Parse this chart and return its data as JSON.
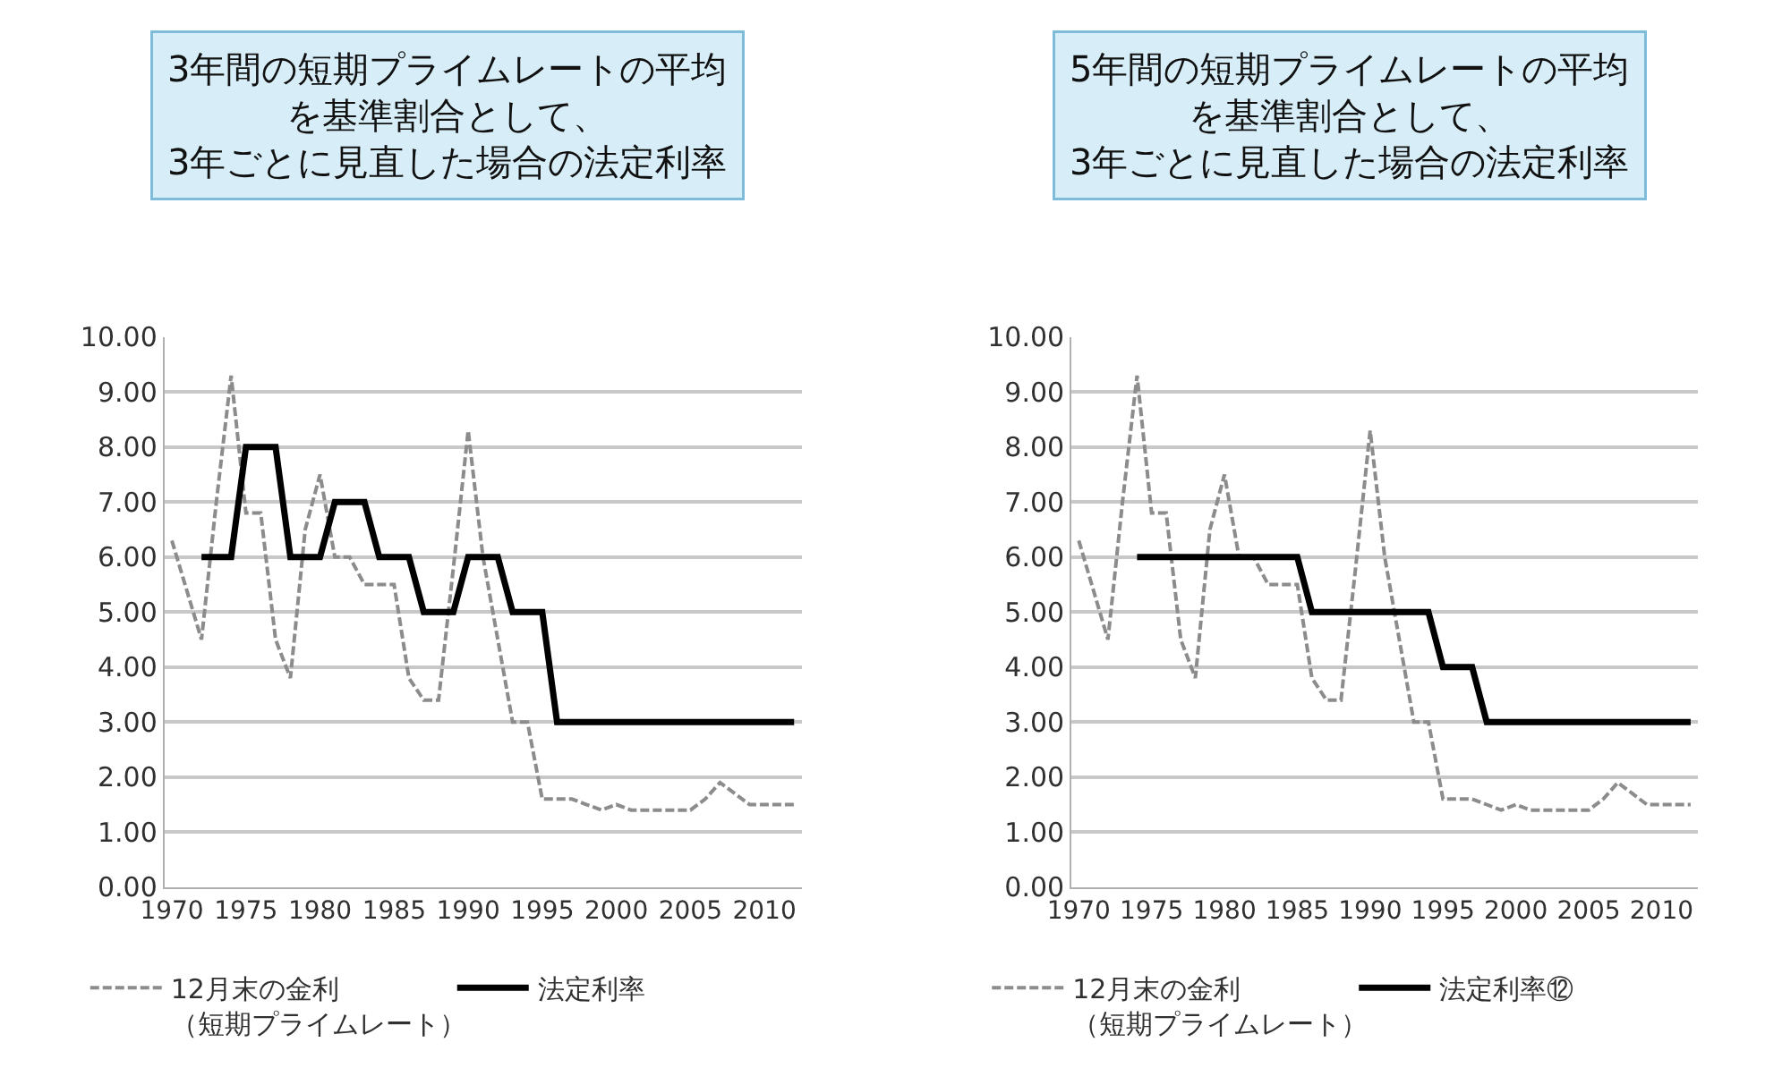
{
  "chart_data": [
    {
      "type": "line",
      "title": "3年間の短期プライムレートの平均を基準割合として、3年ごとに見直した場合の法定利率",
      "x": [
        1970,
        1971,
        1972,
        1973,
        1974,
        1975,
        1976,
        1977,
        1978,
        1979,
        1980,
        1981,
        1982,
        1983,
        1984,
        1985,
        1986,
        1987,
        1988,
        1989,
        1990,
        1991,
        1992,
        1993,
        1994,
        1995,
        1996,
        1997,
        1998,
        1999,
        2000,
        2001,
        2002,
        2003,
        2004,
        2005,
        2006,
        2007,
        2008,
        2009,
        2010,
        2011,
        2012
      ],
      "xlim": [
        1969.5,
        2012.5
      ],
      "xticks": [
        1970,
        1975,
        1980,
        1985,
        1990,
        1995,
        2000,
        2005,
        2010
      ],
      "ylim": [
        0,
        10
      ],
      "yticks": [
        {
          "value": 0,
          "label": "0.00"
        },
        {
          "value": 1,
          "label": "1.00"
        },
        {
          "value": 2,
          "label": "2.00"
        },
        {
          "value": 3,
          "label": "3.00"
        },
        {
          "value": 4,
          "label": "4.00"
        },
        {
          "value": 5,
          "label": "5.00"
        },
        {
          "value": 6,
          "label": "6.00"
        },
        {
          "value": 7,
          "label": "7.00"
        },
        {
          "value": 8,
          "label": "8.00"
        },
        {
          "value": 9,
          "label": "9.00"
        },
        {
          "value": 10,
          "label": "10.00"
        }
      ],
      "grid": "y",
      "legend": "bottom",
      "marker": "none",
      "series": [
        {
          "name": "12月末の金利（短期プライムレート）",
          "color": "#8c8c8c",
          "line_style": "dashed",
          "values": [
            6.3,
            5.4,
            4.5,
            7.0,
            9.3,
            6.8,
            6.8,
            4.5,
            3.8,
            6.5,
            7.5,
            6.0,
            6.0,
            5.5,
            5.5,
            5.5,
            3.8,
            3.4,
            3.4,
            5.8,
            8.3,
            6.0,
            4.5,
            3.0,
            3.0,
            1.6,
            1.6,
            1.6,
            1.5,
            1.4,
            1.5,
            1.4,
            1.4,
            1.4,
            1.4,
            1.4,
            1.6,
            1.9,
            1.7,
            1.5,
            1.5,
            1.5,
            1.5
          ]
        },
        {
          "name": "法定利率",
          "color": "#000000",
          "line_style": "solid",
          "values": [
            null,
            null,
            6,
            6,
            6,
            8,
            8,
            8,
            6,
            6,
            6,
            7,
            7,
            7,
            6,
            6,
            6,
            5,
            5,
            5,
            6,
            6,
            6,
            5,
            5,
            5,
            3,
            3,
            3,
            3,
            3,
            3,
            3,
            3,
            3,
            3,
            3,
            3,
            3,
            3,
            3,
            3,
            3
          ]
        }
      ]
    },
    {
      "type": "line",
      "title": "5年間の短期プライムレートの平均を基準割合として、3年ごとに見直した場合の法定利率",
      "x": [
        1970,
        1971,
        1972,
        1973,
        1974,
        1975,
        1976,
        1977,
        1978,
        1979,
        1980,
        1981,
        1982,
        1983,
        1984,
        1985,
        1986,
        1987,
        1988,
        1989,
        1990,
        1991,
        1992,
        1993,
        1994,
        1995,
        1996,
        1997,
        1998,
        1999,
        2000,
        2001,
        2002,
        2003,
        2004,
        2005,
        2006,
        2007,
        2008,
        2009,
        2010,
        2011,
        2012
      ],
      "xlim": [
        1969.5,
        2012.5
      ],
      "xticks": [
        1970,
        1975,
        1980,
        1985,
        1990,
        1995,
        2000,
        2005,
        2010
      ],
      "ylim": [
        0,
        10
      ],
      "yticks": [
        {
          "value": 0,
          "label": "0.00"
        },
        {
          "value": 1,
          "label": "1.00"
        },
        {
          "value": 2,
          "label": "2.00"
        },
        {
          "value": 3,
          "label": "3.00"
        },
        {
          "value": 4,
          "label": "4.00"
        },
        {
          "value": 5,
          "label": "5.00"
        },
        {
          "value": 6,
          "label": "6.00"
        },
        {
          "value": 7,
          "label": "7.00"
        },
        {
          "value": 8,
          "label": "8.00"
        },
        {
          "value": 9,
          "label": "9.00"
        },
        {
          "value": 10,
          "label": "10.00"
        }
      ],
      "grid": "y",
      "legend": "bottom",
      "marker": "none",
      "series": [
        {
          "name": "12月末の金利（短期プライムレート）",
          "color": "#8c8c8c",
          "line_style": "dashed",
          "values": [
            6.3,
            5.4,
            4.5,
            7.0,
            9.3,
            6.8,
            6.8,
            4.5,
            3.8,
            6.5,
            7.5,
            6.0,
            6.0,
            5.5,
            5.5,
            5.5,
            3.8,
            3.4,
            3.4,
            5.8,
            8.3,
            6.0,
            4.5,
            3.0,
            3.0,
            1.6,
            1.6,
            1.6,
            1.5,
            1.4,
            1.5,
            1.4,
            1.4,
            1.4,
            1.4,
            1.4,
            1.6,
            1.9,
            1.7,
            1.5,
            1.5,
            1.5,
            1.5
          ]
        },
        {
          "name": "法定利率⑫",
          "color": "#000000",
          "line_style": "solid",
          "values": [
            null,
            null,
            null,
            null,
            6,
            6,
            6,
            6,
            6,
            6,
            6,
            6,
            6,
            6,
            6,
            6,
            5,
            5,
            5,
            5,
            5,
            5,
            5,
            5,
            5,
            4,
            4,
            4,
            3,
            3,
            3,
            3,
            3,
            3,
            3,
            3,
            3,
            3,
            3,
            3,
            3,
            3,
            3
          ]
        }
      ]
    }
  ]
}
